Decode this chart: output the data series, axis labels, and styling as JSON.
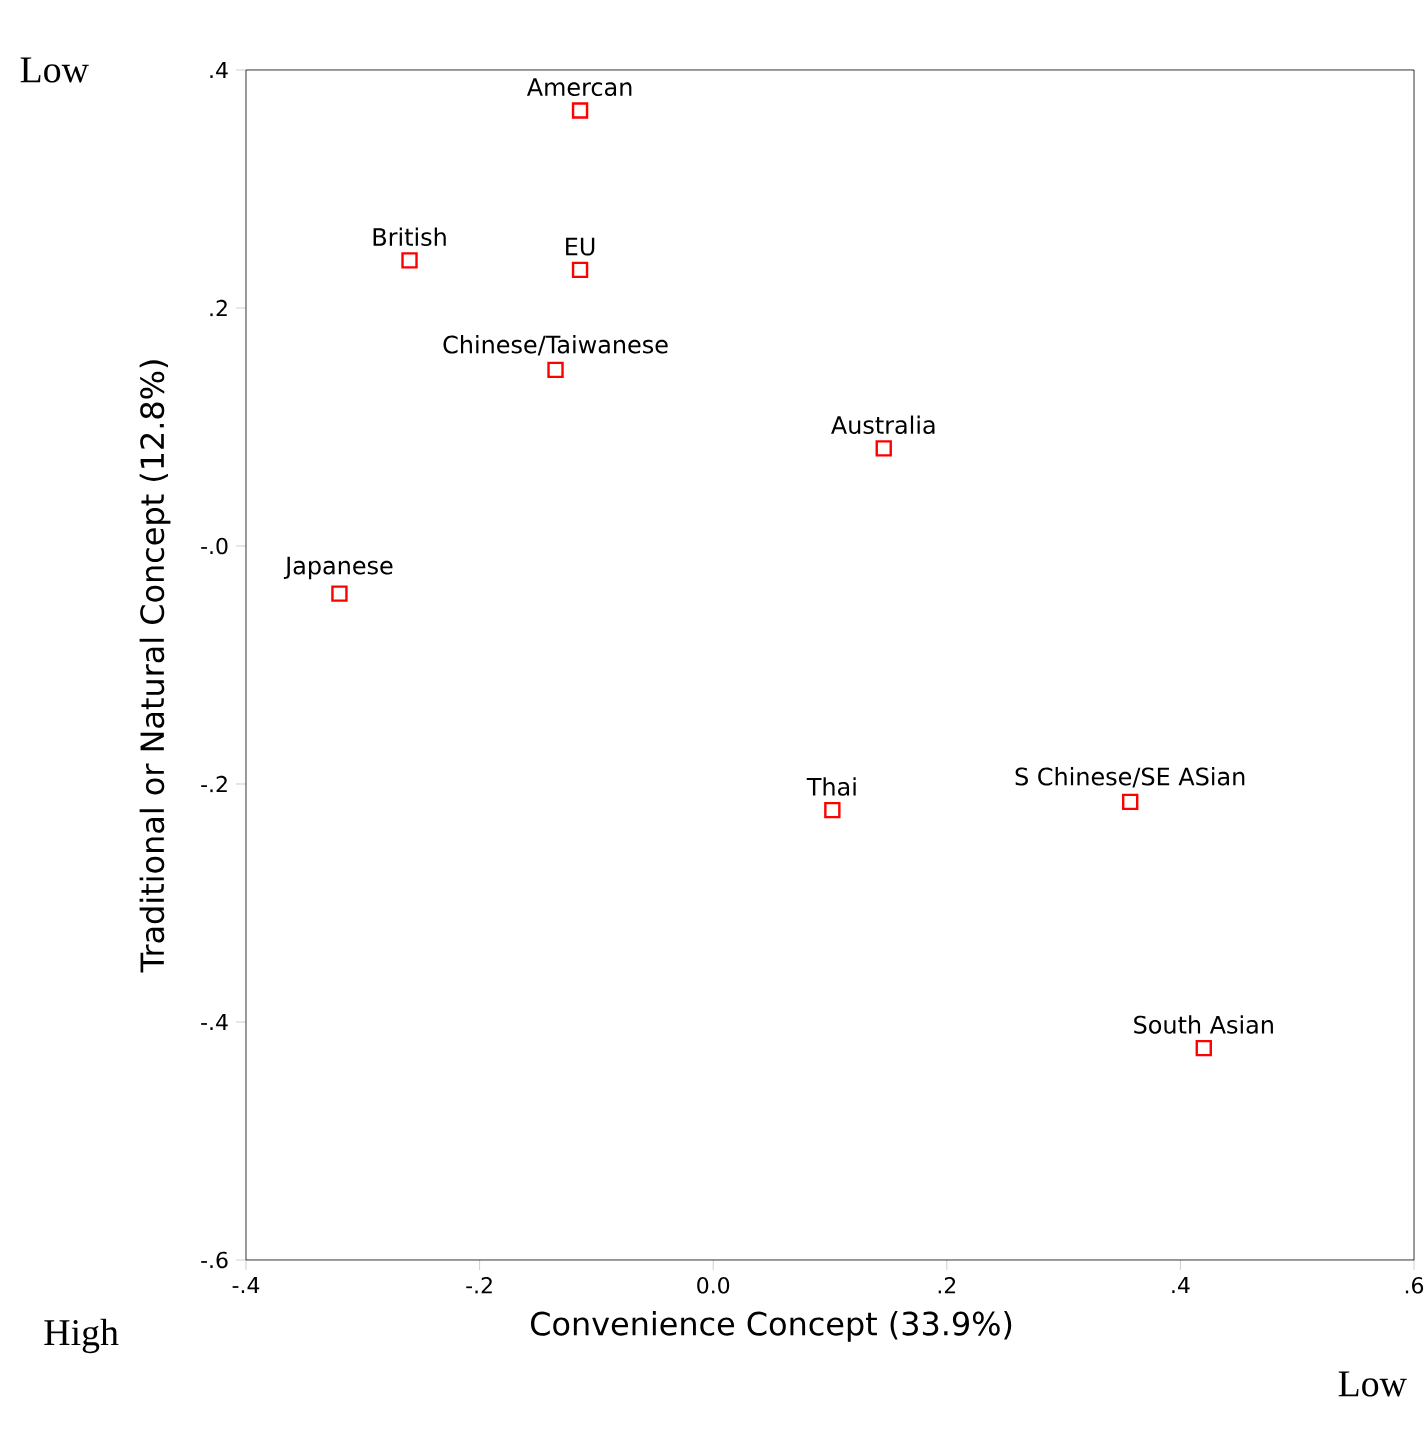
{
  "chart_data": {
    "type": "scatter",
    "xlabel": "Convenience Concept (33.9%)",
    "ylabel": "Traditional or Natural Concept (12.8%)",
    "x": [
      -0.114,
      -0.26,
      -0.114,
      -0.135,
      0.146,
      -0.32,
      0.102,
      0.357,
      0.42
    ],
    "values": [
      0.366,
      0.24,
      0.232,
      0.148,
      0.082,
      -0.04,
      -0.222,
      -0.215,
      -0.422
    ],
    "color": "#ff0000",
    "marker": "square",
    "xlim": [
      -0.4,
      0.6
    ],
    "xticks": [
      {
        "value": -0.4,
        "label": "-.4"
      },
      {
        "value": -0.2,
        "label": "-.2"
      },
      {
        "value": 0,
        "label": "0.0"
      },
      {
        "value": 0.2,
        "label": ".2"
      },
      {
        "value": 0.4,
        "label": ".4"
      },
      {
        "value": 0.6,
        "label": ".6"
      }
    ],
    "ylim": [
      -0.6,
      0.4
    ],
    "yticks": [
      {
        "value": -0.6,
        "label": "-.6"
      },
      {
        "value": -0.4,
        "label": "-.4"
      },
      {
        "value": -0.2,
        "label": "-.2"
      },
      {
        "value": 0,
        "label": "-.0"
      },
      {
        "value": 0.2,
        "label": ".2"
      },
      {
        "value": 0.4,
        "label": ".4"
      }
    ],
    "annotations": [
      {
        "text": "Amercan",
        "x": -0.114,
        "y": 0.366
      },
      {
        "text": "British",
        "x": -0.26,
        "y": 0.24
      },
      {
        "text": "EU",
        "x": -0.114,
        "y": 0.232
      },
      {
        "text": "Chinese/Taiwanese",
        "x": -0.135,
        "y": 0.148
      },
      {
        "text": "Australia",
        "x": 0.146,
        "y": 0.082
      },
      {
        "text": "Japanese",
        "x": -0.32,
        "y": -0.04
      },
      {
        "text": "Thai",
        "x": 0.102,
        "y": -0.222
      },
      {
        "text": "S Chinese/SE ASian",
        "x": 0.357,
        "y": -0.215
      },
      {
        "text": "South Asian",
        "x": 0.42,
        "y": -0.422
      },
      "Low",
      "High",
      "Low"
    ]
  }
}
